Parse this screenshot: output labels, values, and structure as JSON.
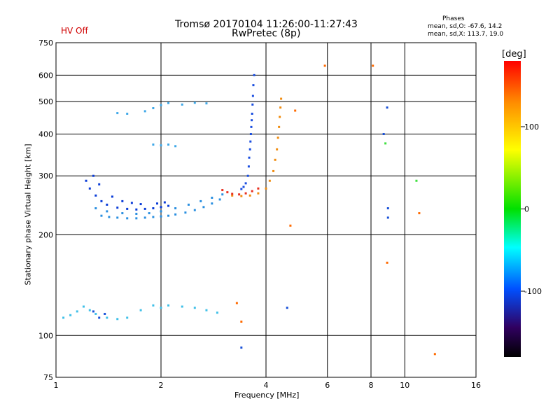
{
  "header": {
    "title_line1": "Tromsø 20170104 11:26:00-11:27:43",
    "title_line2": "RwPretec (8p)",
    "status": "HV Off",
    "phase_heading": "Phases",
    "phase_o": "mean, sd,O: -67.6, 14.2",
    "phase_x": "mean, sd,X: 113.7, 19.0"
  },
  "colorbar": {
    "title": "[deg]",
    "ticks": [
      "100",
      "0",
      "-100"
    ],
    "tick_values": [
      100,
      0,
      -100
    ],
    "range": [
      -180,
      180
    ],
    "colors": [
      "#ff0000",
      "#ff8c00",
      "#ffff00",
      "#00e000",
      "#00ffff",
      "#0050ff",
      "#300060",
      "#000000"
    ]
  },
  "chart_data": {
    "type": "scatter",
    "title": "Tromsø 20170104 11:26:00-11:27:43",
    "subtitle": "RwPretec (8p)",
    "xlabel": "Frequency [MHz]",
    "ylabel": "Stationary phase Virtual Height [km]",
    "xscale": "log",
    "yscale": "log",
    "xlim": [
      1,
      16
    ],
    "ylim": [
      75,
      750
    ],
    "xticks": [
      1,
      2,
      4,
      6,
      8,
      10,
      16
    ],
    "yticks": [
      75,
      100,
      200,
      300,
      400,
      500,
      600,
      750
    ],
    "grid": true,
    "color_encoding": "phase [deg]",
    "series": [
      {
        "name": "",
        "color": "#2a8fe0",
        "points": [
          [
            1.35,
            228
          ],
          [
            1.42,
            226
          ],
          [
            1.5,
            225
          ],
          [
            1.6,
            224
          ],
          [
            1.7,
            224
          ],
          [
            1.8,
            225
          ],
          [
            1.9,
            226
          ],
          [
            2.0,
            227
          ],
          [
            2.1,
            228
          ],
          [
            2.2,
            230
          ],
          [
            2.35,
            233
          ],
          [
            2.5,
            237
          ],
          [
            2.65,
            242
          ],
          [
            2.8,
            248
          ],
          [
            2.95,
            255
          ],
          [
            1.3,
            240
          ],
          [
            1.4,
            235
          ],
          [
            1.55,
            232
          ],
          [
            1.7,
            231
          ],
          [
            1.85,
            232
          ],
          [
            2.0,
            235
          ],
          [
            2.2,
            240
          ],
          [
            2.4,
            246
          ],
          [
            2.6,
            252
          ],
          [
            2.8,
            258
          ],
          [
            3.0,
            264
          ]
        ]
      },
      {
        "name": "",
        "color": "#0a3cd8",
        "points": [
          [
            1.22,
            290
          ],
          [
            1.25,
            275
          ],
          [
            1.3,
            262
          ],
          [
            1.35,
            252
          ],
          [
            1.4,
            246
          ],
          [
            1.5,
            241
          ],
          [
            1.6,
            239
          ],
          [
            1.7,
            238
          ],
          [
            1.8,
            239
          ],
          [
            1.9,
            240
          ],
          [
            2.0,
            242
          ],
          [
            2.1,
            244
          ],
          [
            1.28,
            300
          ],
          [
            1.33,
            283
          ],
          [
            1.45,
            260
          ],
          [
            1.55,
            252
          ],
          [
            1.65,
            249
          ],
          [
            1.75,
            247
          ],
          [
            1.95,
            248
          ],
          [
            2.05,
            250
          ]
        ]
      },
      {
        "name": "",
        "color": "#1a4ee0",
        "points": [
          [
            3.55,
            300
          ],
          [
            3.57,
            320
          ],
          [
            3.58,
            340
          ],
          [
            3.6,
            360
          ],
          [
            3.61,
            380
          ],
          [
            3.62,
            400
          ],
          [
            3.63,
            420
          ],
          [
            3.64,
            440
          ],
          [
            3.65,
            460
          ],
          [
            3.66,
            490
          ],
          [
            3.67,
            520
          ],
          [
            3.68,
            560
          ],
          [
            3.7,
            600
          ],
          [
            3.5,
            285
          ],
          [
            3.45,
            278
          ],
          [
            3.4,
            274
          ]
        ]
      },
      {
        "name": "",
        "color": "#f08c10",
        "points": [
          [
            3.2,
            262
          ],
          [
            3.4,
            261
          ],
          [
            3.6,
            262
          ],
          [
            3.8,
            266
          ],
          [
            4.0,
            275
          ],
          [
            4.1,
            290
          ],
          [
            4.2,
            310
          ],
          [
            4.25,
            335
          ],
          [
            4.3,
            360
          ],
          [
            4.33,
            390
          ],
          [
            4.36,
            420
          ],
          [
            4.38,
            450
          ],
          [
            4.4,
            480
          ],
          [
            4.42,
            510
          ]
        ]
      },
      {
        "name": "",
        "color": "#e83020",
        "points": [
          [
            3.0,
            272
          ],
          [
            3.1,
            268
          ],
          [
            3.2,
            265
          ],
          [
            3.35,
            264
          ],
          [
            3.5,
            266
          ],
          [
            3.65,
            270
          ],
          [
            3.8,
            275
          ]
        ]
      },
      {
        "name": "",
        "color": "#3fa8e8",
        "points": [
          [
            1.5,
            462
          ],
          [
            1.6,
            460
          ],
          [
            1.8,
            468
          ],
          [
            1.9,
            478
          ],
          [
            2.0,
            488
          ],
          [
            2.1,
            495
          ],
          [
            2.3,
            490
          ],
          [
            2.5,
            496
          ],
          [
            2.7,
            494
          ],
          [
            1.9,
            372
          ],
          [
            2.0,
            370
          ],
          [
            2.1,
            372
          ],
          [
            2.2,
            368
          ]
        ]
      },
      {
        "name": "",
        "color": "#40c0e8",
        "points": [
          [
            1.05,
            113
          ],
          [
            1.1,
            115
          ],
          [
            1.15,
            118
          ],
          [
            1.2,
            122
          ],
          [
            1.25,
            119
          ],
          [
            1.3,
            116
          ],
          [
            1.4,
            113
          ],
          [
            1.5,
            112
          ],
          [
            1.6,
            113
          ],
          [
            1.75,
            119
          ],
          [
            1.9,
            123
          ],
          [
            2.0,
            121
          ],
          [
            2.1,
            123
          ],
          [
            2.3,
            122
          ],
          [
            2.5,
            121
          ],
          [
            2.7,
            119
          ],
          [
            2.9,
            117
          ]
        ]
      },
      {
        "name": "",
        "color": "#1850d8",
        "points": [
          [
            1.28,
            118
          ],
          [
            1.33,
            113
          ],
          [
            1.38,
            116
          ],
          [
            8.7,
            400
          ],
          [
            8.9,
            480
          ],
          [
            8.95,
            240
          ],
          [
            8.95,
            225
          ],
          [
            3.4,
            92
          ],
          [
            4.6,
            121
          ]
        ]
      },
      {
        "name": "",
        "color": "#ff6a00",
        "points": [
          [
            3.3,
            125
          ],
          [
            3.4,
            110
          ],
          [
            5.9,
            640
          ],
          [
            8.1,
            640
          ],
          [
            12.2,
            88
          ],
          [
            11.0,
            232
          ],
          [
            4.7,
            213
          ],
          [
            4.85,
            470
          ],
          [
            8.9,
            165
          ]
        ]
      },
      {
        "name": "",
        "color": "#40e040",
        "points": [
          [
            10.8,
            290
          ],
          [
            8.8,
            375
          ]
        ]
      }
    ]
  }
}
